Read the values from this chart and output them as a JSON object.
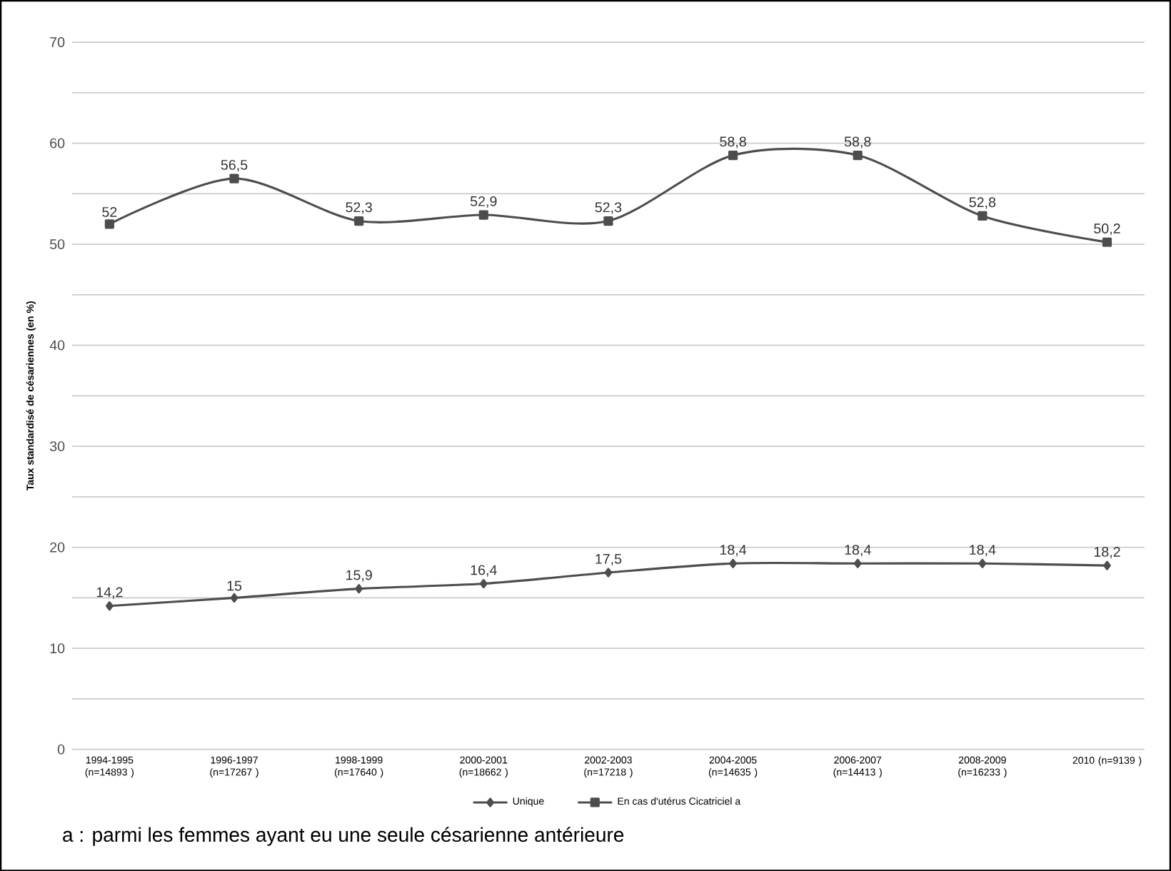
{
  "chart_data": {
    "type": "line",
    "ylabel": "Taux standardisé de césariennes (en %)",
    "categories": [
      "1994-1995 (n=14893 )",
      "1996-1997 (n=17267 )",
      "1998-1999 (n=17640 )",
      "2000-2001 (n=18662 )",
      "2002-2003 (n=17218 )",
      "2004-2005 (n=14635 )",
      "2006-2007 (n=14413 )",
      "2008-2009 (n=16233 )",
      "2010 (n=9139 )"
    ],
    "series": [
      {
        "name": "Unique",
        "color": "#4d4d4d",
        "marker": "diamond",
        "values": [
          14.2,
          15,
          15.9,
          16.4,
          17.5,
          18.4,
          18.4,
          18.4,
          18.2
        ],
        "value_labels": [
          "14,2",
          "15",
          "15,9",
          "16,4",
          "17,5",
          "18,4",
          "18,4",
          "18,4",
          "18,2"
        ]
      },
      {
        "name": "En cas d'utérus Cicatriciel a",
        "color": "#4d4d4d",
        "marker": "square",
        "values": [
          52,
          56.5,
          52.3,
          52.9,
          52.3,
          58.8,
          58.8,
          52.8,
          50.2
        ],
        "value_labels": [
          "52",
          "56,5",
          "52,3",
          "52,9",
          "52,3",
          "58,8",
          "58,8",
          "52,8",
          "50,2"
        ]
      }
    ],
    "ylim": [
      0,
      70
    ],
    "yticks": [
      0,
      {
        "value": 5,
        "label": null
      },
      10,
      {
        "value": 15,
        "label": null
      },
      20,
      {
        "value": 25,
        "label": null
      },
      30,
      {
        "value": 35,
        "label": null
      },
      40,
      {
        "value": 45,
        "label": null
      },
      50,
      {
        "value": 55,
        "label": null
      },
      60,
      {
        "value": 65,
        "label": null
      },
      70
    ],
    "grid": "y",
    "legend": "bottom",
    "line_style": "solid",
    "annotations": [
      "a : parmi les femmes ayant eu une seule césarienne antérieure"
    ]
  }
}
